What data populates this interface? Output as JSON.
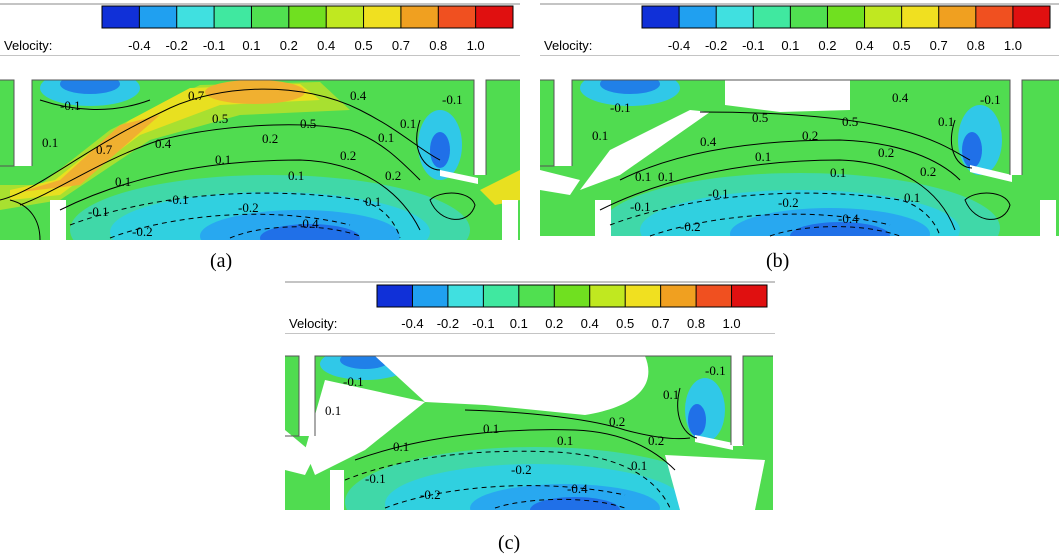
{
  "colorbar": {
    "title": "Velocity:",
    "ticks": [
      "-0.4",
      "-0.2",
      "-0.1",
      "0.1",
      "0.2",
      "0.4",
      "0.5",
      "0.7",
      "0.8",
      "1.0"
    ],
    "colors": [
      "#1030d8",
      "#20a0f0",
      "#40e0e0",
      "#40e8a0",
      "#50e050",
      "#70e020",
      "#c0e820",
      "#f0e020",
      "#f0a020",
      "#f05020",
      "#e01010"
    ]
  },
  "panels": [
    {
      "caption": "(a)",
      "contour_labels": [
        "-0.1",
        "0.1",
        "0.7",
        "0.7",
        "0.5",
        "0.4",
        "0.4",
        "0.5",
        "0.2",
        "0.2",
        "0.1",
        "0.1",
        "0.1",
        "0.1",
        "-0.1",
        "-0.1",
        "-0.2",
        "-0.2",
        "-0.4",
        "0.2",
        "0.1",
        "-0.1",
        "0.1"
      ]
    },
    {
      "caption": "(b)",
      "contour_labels": [
        "-0.1",
        "0.1",
        "0.5",
        "0.4",
        "0.4",
        "0.5",
        "0.2",
        "0.2",
        "0.1",
        "0.1",
        "0.1",
        "0.1",
        "-0.1",
        "-0.1",
        "-0.2",
        "-0.2",
        "-0.4",
        "0.2",
        "0.1",
        "-0.1",
        "0.1"
      ]
    },
    {
      "caption": "(c)",
      "contour_labels": [
        "-0.1",
        "0.1",
        "0.1",
        "0.1",
        "0.1",
        "0.2",
        "0.1",
        "-0.1",
        "-0.2",
        "-0.2",
        "-0.4",
        "0.2",
        "-0.1",
        "0.1"
      ]
    }
  ]
}
